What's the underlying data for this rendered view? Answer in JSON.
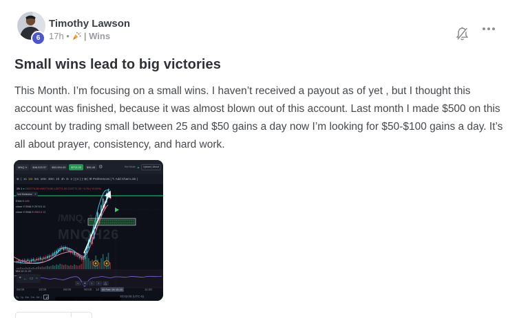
{
  "header": {
    "author": "Timothy Lawson",
    "badge": "6",
    "time": "17h •",
    "group": "| Wins"
  },
  "post": {
    "title": "Small wins lead to big victories",
    "body": "This Month. I’m focusing on a small wins. I haven’t received a payout as of yet , but I thought this account was finished, because it was almost blown out of this account. Last month I made $500 on this account by trading small between 25 and $50 gains a day now I’m looking for $50-$100 gains a day. It’s all about prayer, consistency, and hard work."
  },
  "chart": {
    "topbar": {
      "symbol": "MNQ ∨",
      "value1": "$46,020.57",
      "value2": "$63,594.05",
      "pnl": "$713.25",
      "value3": "$96.45",
      "right_text": "Sim Mode",
      "right_arrow": "▲",
      "right_pill": "Upload | About"
    },
    "toolbar": {
      "plus": "⊕",
      "sep": "|",
      "timeframes": [
        "1s",
        "1m",
        "5m",
        "10m",
        "30m",
        "1h",
        "4h",
        "D"
      ],
      "selected": "1m",
      "rest": "∨ | ▯∨ | ƒ ⊞ | ⚙ Preferences | ✎ Add Chart Link |"
    },
    "ohlc": {
      "prefix": "2B 1",
      "dot": "●",
      "values": "O20774.00 H20774.50 L20771.00 C20771.25 −3.75 (−0.02%)"
    },
    "legend": {
      "chip": "Vol Detector",
      "chip_close": "✕",
      "row1_label": "EMA 9",
      "row1_value": "126",
      "row2_label": "close 9 SMA 9",
      "row2_value": "20743.11",
      "row3_label": "close 9 SMA 9",
      "row3_value": "20613.12",
      "lower_label": "MA 14",
      "lower_value": "11.20"
    },
    "watermark1": "/MNQ, 1",
    "watermark2": "MNQH26",
    "drawing_tools": [
      "⌖",
      "←",
      "▭",
      "~"
    ],
    "nav_buttons": [
      "−",
      "+",
      "‹",
      "›",
      "△"
    ],
    "time_labels": [
      "06:00",
      "10:00",
      "08:00",
      "00:00"
    ],
    "time_pre": "1d",
    "time_chip": "05 Feb '25  15:15",
    "time_last": "11:00",
    "ranges": [
      "5y",
      "1y",
      "6m",
      "1m",
      "5d"
    ],
    "range_sep": "|",
    "clock": "20:03:05 (UTC-5)",
    "fineprint": "·· ····· ··· ········ ·· ······ ··········",
    "graphic": {
      "colors": {
        "up": "#2ec7d9",
        "down": "#e0495c",
        "vol_up": "rgba(42,160,150,0.55)",
        "vol_down": "rgba(219,70,85,0.5)",
        "ma_fast": "#3fd6ea",
        "ma_slow": "#ef7fa7",
        "position_line": "#0f9950",
        "indicator": "#7a5fd0",
        "arrow": "#f4f6f8",
        "flag": "#38c96e"
      },
      "candles": [
        [
          4,
          109,
          111,
          "d"
        ],
        [
          6.6,
          108,
          110,
          "u"
        ],
        [
          9.2,
          109,
          112,
          "d"
        ],
        [
          11.8,
          108,
          110,
          "u"
        ],
        [
          14.4,
          107,
          110,
          "d"
        ],
        [
          17,
          108,
          111,
          "d"
        ],
        [
          19.6,
          107,
          109,
          "u"
        ],
        [
          22.2,
          108,
          111,
          "d"
        ],
        [
          24.8,
          107,
          110,
          "u"
        ],
        [
          27.4,
          106,
          109,
          "u"
        ],
        [
          30,
          107,
          110,
          "d"
        ],
        [
          32.6,
          106,
          108,
          "u"
        ],
        [
          35.2,
          105,
          108,
          "d"
        ],
        [
          37.8,
          104,
          107,
          "u"
        ],
        [
          40.4,
          105,
          108,
          "d"
        ],
        [
          43,
          104,
          106,
          "u"
        ],
        [
          45.6,
          103,
          106,
          "d"
        ],
        [
          48.2,
          102,
          105,
          "u"
        ],
        [
          50.8,
          101,
          104,
          "u"
        ],
        [
          53.4,
          100,
          103,
          "d"
        ],
        [
          56,
          98,
          102,
          "u"
        ],
        [
          58.6,
          96,
          100,
          "u"
        ],
        [
          61.2,
          94,
          98,
          "u"
        ],
        [
          63.8,
          92,
          96,
          "u"
        ],
        [
          66.4,
          90,
          94,
          "u"
        ],
        [
          69,
          88,
          92,
          "d"
        ],
        [
          71.6,
          89,
          93,
          "u"
        ],
        [
          74.2,
          88,
          92,
          "d"
        ],
        [
          76.8,
          90,
          94,
          "d"
        ],
        [
          79.4,
          92,
          95,
          "u"
        ],
        [
          82,
          93,
          97,
          "d"
        ],
        [
          84.6,
          95,
          98,
          "d"
        ],
        [
          87.2,
          96,
          100,
          "u"
        ],
        [
          89.8,
          98,
          101,
          "d"
        ],
        [
          92.4,
          99,
          103,
          "d"
        ],
        [
          95,
          101,
          105,
          "d"
        ],
        [
          97.6,
          103,
          107,
          "d"
        ],
        [
          100.2,
          104,
          108,
          "d"
        ],
        [
          102.8,
          96,
          106,
          "u"
        ],
        [
          105.4,
          88,
          98,
          "u"
        ],
        [
          108,
          78,
          90,
          "u"
        ],
        [
          110.6,
          70,
          82,
          "u"
        ],
        [
          113.2,
          74,
          84,
          "d"
        ],
        [
          115.8,
          60,
          76,
          "u"
        ],
        [
          118.4,
          48,
          62,
          "u"
        ],
        [
          121,
          38,
          52,
          "u"
        ],
        [
          123.6,
          42,
          54,
          "d"
        ],
        [
          126.2,
          28,
          44,
          "u"
        ],
        [
          128.8,
          18,
          32,
          "u"
        ],
        [
          131.4,
          22,
          34,
          "d"
        ],
        [
          134,
          10,
          24,
          "u"
        ],
        [
          136.6,
          5,
          16,
          "u"
        ],
        [
          139.2,
          9,
          18,
          "d"
        ]
      ],
      "volume": [
        [
          4,
          2,
          "d"
        ],
        [
          6.6,
          2,
          "u"
        ],
        [
          9.2,
          3,
          "d"
        ],
        [
          11.8,
          2,
          "u"
        ],
        [
          14.4,
          2,
          "d"
        ],
        [
          17,
          3,
          "d"
        ],
        [
          19.6,
          2,
          "u"
        ],
        [
          22.2,
          3,
          "d"
        ],
        [
          24.8,
          2,
          "u"
        ],
        [
          27.4,
          3,
          "u"
        ],
        [
          30,
          2,
          "d"
        ],
        [
          32.6,
          3,
          "u"
        ],
        [
          35.2,
          4,
          "d"
        ],
        [
          37.8,
          3,
          "u"
        ],
        [
          40.4,
          4,
          "d"
        ],
        [
          43,
          3,
          "u"
        ],
        [
          45.6,
          4,
          "d"
        ],
        [
          48.2,
          5,
          "u"
        ],
        [
          50.8,
          4,
          "u"
        ],
        [
          53.4,
          5,
          "d"
        ],
        [
          56,
          6,
          "u"
        ],
        [
          58.6,
          5,
          "u"
        ],
        [
          61.2,
          7,
          "u"
        ],
        [
          63.8,
          6,
          "u"
        ],
        [
          66.4,
          8,
          "u"
        ],
        [
          69,
          7,
          "d"
        ],
        [
          71.6,
          6,
          "u"
        ],
        [
          74.2,
          7,
          "d"
        ],
        [
          76.8,
          6,
          "d"
        ],
        [
          79.4,
          5,
          "u"
        ],
        [
          82,
          6,
          "d"
        ],
        [
          84.6,
          5,
          "d"
        ],
        [
          87.2,
          7,
          "u"
        ],
        [
          89.8,
          6,
          "d"
        ],
        [
          92.4,
          5,
          "d"
        ],
        [
          95,
          6,
          "d"
        ],
        [
          97.6,
          8,
          "d"
        ],
        [
          100.2,
          12,
          "d"
        ],
        [
          102.8,
          26,
          "u"
        ],
        [
          105.4,
          20,
          "u"
        ],
        [
          108,
          16,
          "u"
        ],
        [
          110.6,
          12,
          "u"
        ],
        [
          113.2,
          14,
          "d"
        ],
        [
          115.8,
          10,
          "u"
        ],
        [
          118.4,
          20,
          "u"
        ],
        [
          121,
          14,
          "u"
        ],
        [
          123.6,
          10,
          "d"
        ],
        [
          126.2,
          16,
          "u"
        ],
        [
          128.8,
          22,
          "u"
        ],
        [
          131.4,
          12,
          "d"
        ],
        [
          134,
          18,
          "u"
        ],
        [
          136.6,
          24,
          "u"
        ],
        [
          139.2,
          10,
          "d"
        ]
      ]
    }
  }
}
